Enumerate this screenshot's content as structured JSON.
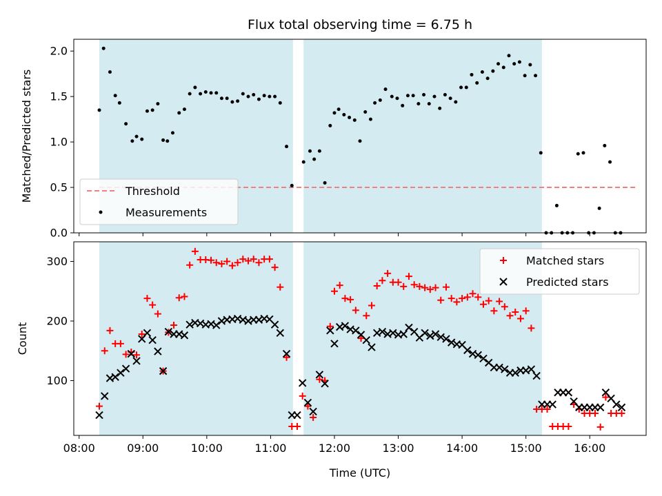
{
  "chart_data": {
    "type": "scatter",
    "title": "Flux total observing time = 6.75 h",
    "xlabel": "Time (UTC)",
    "x_tick_labels": [
      "08:00",
      "09:00",
      "10:00",
      "11:00",
      "12:00",
      "13:00",
      "14:00",
      "15:00",
      "16:00"
    ],
    "x_ticks_minutes": [
      480,
      540,
      600,
      660,
      720,
      780,
      840,
      900,
      960
    ],
    "xlim_minutes": [
      475,
      1013
    ],
    "observing_windows_minutes": [
      [
        499,
        681
      ],
      [
        691,
        915
      ]
    ],
    "colors": {
      "window": "#d4ebf1",
      "threshold": "#f08080",
      "measurements": "#000000",
      "matched": "#ff0000",
      "predicted": "#000000"
    },
    "panels": [
      {
        "ylabel": "Matched/Predicted stars",
        "ylim": [
          0,
          2.13
        ],
        "y_ticks": [
          0,
          0.5,
          1,
          1.5,
          2
        ],
        "y_tick_labels": [
          "0.0",
          "0.5",
          "1.0",
          "1.5",
          "2.0"
        ],
        "legend_position": "lower-left",
        "threshold": {
          "name": "Threshold",
          "y": 0.5,
          "x_range": [
            499,
            1004
          ]
        },
        "series": [
          {
            "name": "Measurements",
            "marker": "dot",
            "x": [
              499,
              503,
              509,
              514,
              518,
              524,
              530,
              534,
              539,
              544,
              549,
              554,
              559,
              563,
              568,
              574,
              579,
              584,
              589,
              594,
              599,
              604,
              609,
              614,
              619,
              624,
              629,
              634,
              639,
              644,
              649,
              654,
              659,
              664,
              669,
              675,
              680,
              691,
              697,
              701,
              706,
              711,
              716,
              720,
              724,
              729,
              734,
              739,
              744,
              749,
              754,
              758,
              763,
              768,
              774,
              779,
              784,
              789,
              794,
              799,
              804,
              809,
              814,
              819,
              824,
              829,
              834,
              839,
              844,
              849,
              854,
              859,
              864,
              869,
              874,
              879,
              884,
              889,
              894,
              899,
              904,
              909,
              914,
              919,
              924,
              929,
              934,
              939,
              944,
              949,
              954,
              959,
              964,
              969,
              974,
              979,
              984,
              989
            ],
            "y": [
              1.35,
              2.03,
              1.77,
              1.51,
              1.43,
              1.2,
              1.01,
              1.06,
              1.03,
              1.34,
              1.35,
              1.42,
              1.02,
              1.01,
              1.1,
              1.32,
              1.36,
              1.53,
              1.6,
              1.53,
              1.55,
              1.54,
              1.54,
              1.48,
              1.48,
              1.44,
              1.45,
              1.53,
              1.5,
              1.52,
              1.47,
              1.51,
              1.5,
              1.5,
              1.43,
              0.95,
              0.52,
              0.78,
              0.9,
              0.81,
              0.9,
              0.55,
              1.18,
              1.32,
              1.36,
              1.3,
              1.27,
              1.24,
              1.01,
              1.33,
              1.25,
              1.43,
              1.46,
              1.58,
              1.5,
              1.48,
              1.4,
              1.51,
              1.51,
              1.42,
              1.52,
              1.42,
              1.5,
              1.37,
              1.52,
              1.48,
              1.44,
              1.6,
              1.6,
              1.74,
              1.65,
              1.77,
              1.7,
              1.78,
              1.86,
              1.82,
              1.95,
              1.86,
              1.88,
              1.73,
              1.85,
              1.73,
              0.88,
              0,
              0,
              0.3,
              0,
              0,
              0,
              0.87,
              0.88,
              0,
              0,
              0.27,
              0.96,
              0.78,
              0,
              0
            ]
          }
        ]
      },
      {
        "ylabel": "Count",
        "ylim": [
          8,
          333
        ],
        "y_ticks": [
          100,
          200,
          300
        ],
        "y_tick_labels": [
          "100",
          "200",
          "300"
        ],
        "legend_position": "upper-right",
        "series": [
          {
            "name": "Matched stars",
            "marker": "plus",
            "x": [
              499,
              504,
              509,
              514,
              519,
              524,
              529,
              534,
              539,
              544,
              549,
              554,
              559,
              564,
              569,
              574,
              579,
              584,
              589,
              594,
              599,
              604,
              609,
              614,
              619,
              624,
              629,
              634,
              639,
              644,
              649,
              654,
              659,
              664,
              669,
              675,
              680,
              685,
              690,
              695,
              700,
              706,
              711,
              716,
              720,
              725,
              730,
              735,
              740,
              745,
              750,
              755,
              760,
              765,
              770,
              775,
              780,
              785,
              790,
              795,
              800,
              805,
              810,
              815,
              820,
              825,
              830,
              835,
              840,
              845,
              850,
              855,
              860,
              865,
              870,
              875,
              880,
              885,
              890,
              895,
              900,
              905,
              910,
              915,
              920,
              925,
              930,
              935,
              940,
              945,
              950,
              955,
              960,
              965,
              970,
              975,
              980,
              985,
              990
            ],
            "y": [
              57,
              150,
              184,
              162,
              162,
              144,
              148,
              143,
              178,
              238,
              227,
              212,
              116,
              181,
              193,
              239,
              241,
              294,
              317,
              303,
              303,
              302,
              298,
              296,
              300,
              293,
              298,
              304,
              301,
              304,
              298,
              304,
              304,
              290,
              257,
              139,
              23,
              23,
              74,
              57,
              38,
              102,
              100,
              191,
              250,
              260,
              238,
              236,
              218,
              171,
              209,
              226,
              259,
              268,
              280,
              265,
              265,
              258,
              275,
              261,
              258,
              256,
              253,
              256,
              235,
              257,
              238,
              232,
              238,
              240,
              246,
              240,
              228,
              234,
              217,
              233,
              224,
              209,
              215,
              204,
              217,
              188,
              52,
              52,
              52,
              23,
              23,
              23,
              23,
              60,
              52,
              45,
              45,
              45,
              22,
              72,
              45,
              45,
              45
            ],
            "x_err_note": ""
          },
          {
            "name": "Predicted stars",
            "marker": "x",
            "x": [
              499,
              504,
              509,
              514,
              519,
              524,
              529,
              534,
              539,
              544,
              549,
              554,
              559,
              564,
              569,
              574,
              579,
              584,
              589,
              594,
              599,
              604,
              609,
              614,
              619,
              624,
              629,
              634,
              639,
              644,
              649,
              654,
              659,
              664,
              669,
              675,
              680,
              685,
              690,
              695,
              700,
              706,
              711,
              716,
              720,
              725,
              730,
              735,
              740,
              745,
              750,
              755,
              760,
              765,
              770,
              775,
              780,
              785,
              790,
              795,
              800,
              805,
              810,
              815,
              820,
              825,
              830,
              835,
              840,
              845,
              850,
              855,
              860,
              865,
              870,
              875,
              880,
              885,
              890,
              895,
              900,
              905,
              910,
              915,
              920,
              925,
              930,
              935,
              940,
              945,
              950,
              955,
              960,
              965,
              970,
              975,
              980,
              985,
              990
            ],
            "y": [
              42,
              74,
              104,
              106,
              113,
              120,
              145,
              133,
              170,
              180,
              168,
              149,
              116,
              182,
              178,
              178,
              176,
              194,
              197,
              196,
              194,
              195,
              193,
              200,
              202,
              203,
              204,
              202,
              200,
              202,
              202,
              204,
              203,
              194,
              180,
              145,
              42,
              42,
              96,
              63,
              48,
              110,
              95,
              184,
              162,
              190,
              192,
              186,
              184,
              177,
              168,
              156,
              180,
              182,
              178,
              180,
              177,
              178,
              189,
              182,
              172,
              180,
              175,
              178,
              173,
              170,
              164,
              161,
              160,
              151,
              145,
              143,
              137,
              130,
              122,
              122,
              119,
              113,
              113,
              117,
              117,
              119,
              108,
              60,
              60,
              60,
              80,
              80,
              80,
              65,
              55,
              55,
              55,
              55,
              55,
              80,
              70,
              60,
              55
            ]
          }
        ]
      }
    ]
  }
}
